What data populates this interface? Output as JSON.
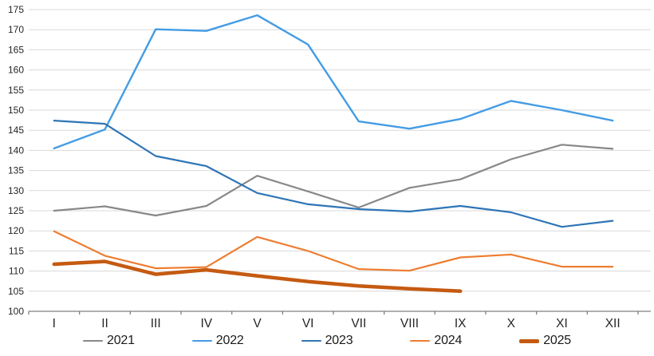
{
  "chart_data": {
    "type": "line",
    "title": "",
    "xlabel": "",
    "ylabel": "",
    "x_labels": [
      "I",
      "II",
      "III",
      "IV",
      "V",
      "VI",
      "VII",
      "VIII",
      "IX",
      "X",
      "XI",
      "XII"
    ],
    "y_ticks": [
      100,
      105,
      110,
      115,
      120,
      125,
      130,
      135,
      140,
      145,
      150,
      155,
      160,
      165,
      170,
      175
    ],
    "ylim": [
      100,
      175
    ],
    "grid": true,
    "legend_position": "bottom",
    "grid_color": "#D9D9D9",
    "axis_color": "#808080",
    "label_color": "#262626",
    "series": [
      {
        "name": "2021",
        "color": "#888888",
        "width": 2.2,
        "values": [
          125.0,
          126.1,
          123.8,
          126.2,
          133.7,
          129.8,
          125.8,
          130.7,
          132.8,
          137.8,
          141.4,
          140.4
        ]
      },
      {
        "name": "2022",
        "color": "#449CE4",
        "width": 2.4,
        "values": [
          140.5,
          145.2,
          170.1,
          169.7,
          173.6,
          166.3,
          147.2,
          145.4,
          147.8,
          152.3,
          150.0,
          147.4
        ]
      },
      {
        "name": "2023",
        "color": "#2E75B6",
        "width": 2.2,
        "values": [
          147.4,
          146.6,
          138.6,
          136.1,
          129.4,
          126.6,
          125.4,
          124.8,
          126.2,
          124.6,
          121.0,
          122.5
        ]
      },
      {
        "name": "2024",
        "color": "#ED7D31",
        "width": 2.2,
        "values": [
          119.9,
          113.8,
          110.7,
          111.0,
          118.5,
          115.0,
          110.5,
          110.1,
          113.4,
          114.1,
          111.1,
          111.1
        ]
      },
      {
        "name": "2025",
        "color": "#C55A11",
        "width": 4.5,
        "values": [
          111.7,
          112.4,
          109.2,
          110.3,
          108.8,
          107.4,
          106.3,
          105.6,
          105.0
        ]
      }
    ]
  }
}
